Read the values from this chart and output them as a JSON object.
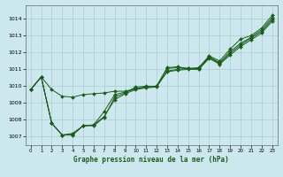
{
  "title": "Graphe pression niveau de la mer (hPa)",
  "background_color": "#cce8ee",
  "grid_color": "#aacccc",
  "line_color": "#1a5e1a",
  "xlim": [
    -0.5,
    23.5
  ],
  "ylim": [
    1006.5,
    1014.8
  ],
  "yticks": [
    1007,
    1008,
    1009,
    1010,
    1011,
    1012,
    1013,
    1014
  ],
  "xticks": [
    0,
    1,
    2,
    3,
    4,
    5,
    6,
    7,
    8,
    9,
    10,
    11,
    12,
    13,
    14,
    15,
    16,
    17,
    18,
    19,
    20,
    21,
    22,
    23
  ],
  "series": [
    [
      1009.8,
      1010.55,
      1007.8,
      1007.1,
      1007.1,
      1007.65,
      1007.65,
      1008.15,
      1009.35,
      1009.6,
      1009.95,
      1010.0,
      1010.0,
      1011.1,
      1011.15,
      1011.05,
      1011.1,
      1011.8,
      1011.5,
      1012.2,
      1012.8,
      1013.0,
      1013.45,
      1014.2
    ],
    [
      1009.8,
      1010.55,
      1007.8,
      1007.1,
      1007.15,
      1007.65,
      1007.7,
      1008.5,
      1009.5,
      1009.65,
      1009.85,
      1009.95,
      1010.0,
      1011.05,
      1011.1,
      1011.05,
      1011.05,
      1011.75,
      1011.4,
      1012.05,
      1012.55,
      1012.9,
      1013.35,
      1014.05
    ],
    [
      1009.8,
      1010.55,
      1007.8,
      1007.1,
      1007.2,
      1007.65,
      1007.7,
      1008.2,
      1009.2,
      1009.55,
      1009.8,
      1009.9,
      1009.95,
      1010.9,
      1011.0,
      1011.05,
      1011.0,
      1011.7,
      1011.35,
      1011.95,
      1012.45,
      1012.85,
      1013.25,
      1013.95
    ],
    [
      1009.8,
      1010.55,
      1009.8,
      1009.4,
      1009.35,
      1009.5,
      1009.55,
      1009.6,
      1009.7,
      1009.7,
      1009.85,
      1009.95,
      1010.0,
      1010.85,
      1010.95,
      1011.0,
      1011.0,
      1011.65,
      1011.3,
      1011.85,
      1012.35,
      1012.75,
      1013.15,
      1013.85
    ]
  ]
}
